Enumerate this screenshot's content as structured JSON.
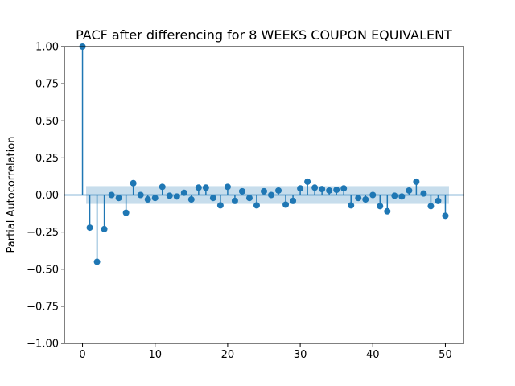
{
  "chart_data": {
    "type": "scatter",
    "title": "PACF after differencing for 8 WEEKS COUPON EQUIVALENT",
    "xlabel": "",
    "ylabel": "Partial Autocorrelation",
    "xlim": [
      -2.5,
      52.5
    ],
    "ylim": [
      -1.0,
      1.0
    ],
    "x_ticks": [
      0,
      10,
      20,
      30,
      40,
      50
    ],
    "x_tick_labels": [
      "0",
      "10",
      "20",
      "30",
      "40",
      "50"
    ],
    "y_ticks": [
      -1.0,
      -0.75,
      -0.5,
      -0.25,
      0.0,
      0.25,
      0.5,
      0.75,
      1.0
    ],
    "y_tick_labels": [
      "−1.00",
      "−0.75",
      "−0.50",
      "−0.25",
      "0.00",
      "0.25",
      "0.50",
      "0.75",
      "1.00"
    ],
    "grid": false,
    "confidence_band": {
      "lower": -0.06,
      "upper": 0.06,
      "start_lag": 0.5,
      "end_lag": 50.5
    },
    "series": [
      {
        "x": [
          0,
          1,
          2,
          3,
          4,
          5,
          6,
          7,
          8,
          9,
          10,
          11,
          12,
          13,
          14,
          15,
          16,
          17,
          18,
          19,
          20,
          21,
          22,
          23,
          24,
          25,
          26,
          27,
          28,
          29,
          30,
          31,
          32,
          33,
          34,
          35,
          36,
          37,
          38,
          39,
          40,
          41,
          42,
          43,
          44,
          45,
          46,
          47,
          48,
          49,
          50
        ],
        "values": [
          1.0,
          -0.22,
          -0.45,
          -0.23,
          0.0,
          -0.02,
          -0.12,
          0.08,
          0.0,
          -0.03,
          -0.02,
          0.055,
          -0.005,
          -0.01,
          0.015,
          -0.03,
          0.05,
          0.05,
          -0.02,
          -0.07,
          0.055,
          -0.04,
          0.025,
          -0.02,
          -0.07,
          0.025,
          0.0,
          0.03,
          -0.065,
          -0.04,
          0.045,
          0.09,
          0.05,
          0.04,
          0.03,
          0.035,
          0.045,
          -0.07,
          -0.02,
          -0.03,
          0.0,
          -0.075,
          -0.11,
          -0.005,
          -0.01,
          0.03,
          0.09,
          0.01,
          -0.075,
          -0.04,
          -0.14
        ]
      }
    ],
    "colors": {
      "stem": "#1f77b4",
      "marker": "#1f77b4",
      "band": "#1f77b4",
      "zero_line": "#1f77b4",
      "axes": "#000000"
    }
  }
}
